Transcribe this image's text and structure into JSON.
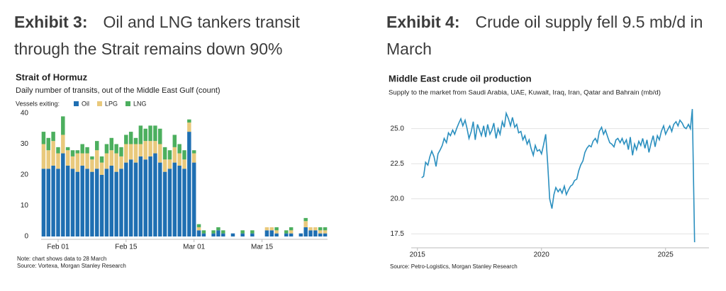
{
  "chart_data": [
    {
      "type": "bar",
      "stacked": true,
      "exhibit": "Exhibit 3:",
      "heading": "Oil and LNG tankers transit through the Strait remains down 90%",
      "title": "Strait of Hormuz",
      "subtitle": "Daily number of transits, out of the Middle East Gulf (count)",
      "legend_title": "Vessels exiting:",
      "note": "Note: chart shows data to 28 March",
      "source": "Source: Vortexa, Morgan Stanley Research",
      "categories": [
        null,
        null,
        null,
        "Feb 01",
        null,
        null,
        null,
        null,
        null,
        null,
        null,
        null,
        null,
        null,
        null,
        null,
        null,
        "Feb 15",
        null,
        null,
        null,
        null,
        null,
        null,
        null,
        null,
        null,
        null,
        null,
        null,
        null,
        "Mar 01",
        null,
        null,
        null,
        null,
        null,
        null,
        null,
        null,
        null,
        null,
        null,
        null,
        null,
        "Mar 15",
        null,
        null,
        null,
        null,
        null,
        null,
        null,
        null,
        null,
        null,
        null,
        null,
        null
      ],
      "series": [
        {
          "name": "Oil",
          "color": "#1f6fb2",
          "values": [
            22,
            22,
            23,
            22,
            27,
            23,
            22,
            21,
            23,
            22,
            21,
            22,
            20,
            22,
            23,
            21,
            22,
            24,
            25,
            24,
            26,
            25,
            26,
            27,
            24,
            21,
            22,
            24,
            23,
            22,
            34,
            24,
            2,
            1,
            0,
            1,
            2,
            1,
            0,
            1,
            0,
            1,
            0,
            1,
            0,
            0,
            2,
            2,
            1,
            0,
            1,
            1,
            0,
            1,
            3,
            2,
            2,
            1,
            1
          ]
        },
        {
          "name": "LPG",
          "color": "#e9c97c",
          "values": [
            8,
            6,
            8,
            5,
            6,
            5,
            4,
            6,
            4,
            5,
            4,
            6,
            4,
            5,
            5,
            6,
            4,
            6,
            5,
            6,
            4,
            6,
            5,
            4,
            6,
            4,
            3,
            5,
            4,
            3,
            3,
            3,
            1,
            0,
            0,
            0,
            0,
            0,
            0,
            0,
            0,
            0,
            0,
            0,
            0,
            0,
            1,
            1,
            1,
            0,
            0,
            1,
            0,
            0,
            2,
            1,
            1,
            1,
            1
          ]
        },
        {
          "name": "LNG",
          "color": "#4caf5e",
          "values": [
            4,
            4,
            3,
            2,
            6,
            1,
            2,
            1,
            3,
            2,
            1,
            3,
            2,
            3,
            4,
            3,
            3,
            3,
            4,
            2,
            6,
            4,
            5,
            5,
            5,
            4,
            3,
            4,
            3,
            3,
            1,
            1,
            1,
            1,
            0,
            1,
            1,
            1,
            0,
            0,
            0,
            1,
            0,
            1,
            0,
            0,
            0,
            0,
            1,
            0,
            1,
            1,
            0,
            0,
            1,
            0,
            0,
            1,
            1
          ]
        }
      ],
      "ylim": [
        0,
        40
      ],
      "yticks": [
        0,
        10,
        20,
        30,
        40
      ],
      "grid": false
    },
    {
      "type": "line",
      "exhibit": "Exhibit 4:",
      "heading": "Crude oil supply fell 9.5 mb/d in March",
      "title": "Middle East crude oil production",
      "subtitle": "Supply to the market from Saudi Arabia, UAE, Kuwait, Iraq, Iran, Qatar and Bahrain (mb/d)",
      "source": "Source: Petro-Logistics, Morgan Stanley Research",
      "color": "#2a8fbf",
      "x": [
        2015.17,
        2015.25,
        2015.33,
        2015.42,
        2015.5,
        2015.58,
        2015.67,
        2015.75,
        2015.83,
        2015.92,
        2016,
        2016.08,
        2016.17,
        2016.25,
        2016.33,
        2016.42,
        2016.5,
        2016.58,
        2016.67,
        2016.75,
        2016.83,
        2016.92,
        2017,
        2017.08,
        2017.17,
        2017.25,
        2017.33,
        2017.42,
        2017.5,
        2017.58,
        2017.67,
        2017.75,
        2017.83,
        2017.92,
        2018,
        2018.08,
        2018.17,
        2018.25,
        2018.33,
        2018.42,
        2018.5,
        2018.58,
        2018.67,
        2018.75,
        2018.83,
        2018.92,
        2019,
        2019.08,
        2019.17,
        2019.25,
        2019.33,
        2019.42,
        2019.5,
        2019.58,
        2019.67,
        2019.75,
        2019.83,
        2019.92,
        2020,
        2020.08,
        2020.17,
        2020.25,
        2020.33,
        2020.42,
        2020.5,
        2020.58,
        2020.67,
        2020.75,
        2020.83,
        2020.92,
        2021,
        2021.08,
        2021.17,
        2021.25,
        2021.33,
        2021.42,
        2021.5,
        2021.58,
        2021.67,
        2021.75,
        2021.83,
        2021.92,
        2022,
        2022.08,
        2022.17,
        2022.25,
        2022.33,
        2022.42,
        2022.5,
        2022.58,
        2022.67,
        2022.75,
        2022.83,
        2022.92,
        2023,
        2023.08,
        2023.17,
        2023.25,
        2023.33,
        2023.42,
        2023.5,
        2023.58,
        2023.67,
        2023.75,
        2023.83,
        2023.92,
        2024,
        2024.08,
        2024.17,
        2024.25,
        2024.33,
        2024.42,
        2024.5,
        2024.58,
        2024.67,
        2024.75,
        2024.83,
        2024.92,
        2025,
        2025.08,
        2025.17,
        2025.25,
        2025.33,
        2025.42,
        2025.5,
        2025.58,
        2025.67,
        2025.75,
        2025.83,
        2025.92,
        2026,
        2026.08,
        2026.17
      ],
      "values": [
        21.5,
        21.6,
        22.6,
        22.4,
        23.0,
        23.4,
        23.0,
        22.3,
        23.2,
        23.5,
        23.8,
        24.3,
        24.0,
        24.7,
        24.5,
        24.9,
        24.6,
        25.0,
        25.4,
        25.7,
        25.2,
        25.6,
        25.0,
        24.3,
        24.8,
        25.5,
        24.2,
        25.3,
        24.9,
        24.5,
        25.2,
        24.4,
        25.3,
        24.6,
        24.9,
        25.4,
        24.3,
        25.0,
        24.6,
        25.5,
        25.1,
        26.1,
        25.7,
        25.2,
        25.8,
        25.1,
        25.3,
        24.7,
        24.8,
        24.2,
        24.5,
        23.9,
        24.2,
        23.6,
        23.1,
        23.8,
        23.4,
        23.5,
        23.2,
        23.8,
        24.6,
        22.5,
        20.0,
        19.3,
        20.3,
        20.8,
        20.5,
        20.7,
        20.4,
        20.9,
        20.3,
        20.6,
        20.9,
        21.0,
        21.3,
        21.4,
        22.0,
        22.4,
        22.7,
        23.3,
        23.6,
        23.8,
        23.7,
        24.1,
        24.3,
        24.0,
        24.8,
        25.1,
        24.6,
        24.9,
        24.4,
        24.0,
        23.9,
        23.7,
        24.2,
        24.3,
        24.0,
        24.3,
        23.9,
        24.2,
        23.5,
        24.4,
        23.1,
        23.9,
        23.5,
        24.1,
        23.8,
        24.3,
        23.6,
        24.2,
        23.3,
        24.0,
        24.5,
        23.7,
        24.5,
        24.2,
        24.8,
        25.2,
        24.6,
        24.9,
        25.2,
        24.8,
        25.3,
        25.5,
        25.2,
        25.6,
        25.4,
        25.1,
        25.0,
        25.3,
        25.0,
        26.4,
        16.9
      ],
      "xlim": [
        2014.75,
        2026.75
      ],
      "xticks": [
        2015,
        2020,
        2025
      ],
      "ylim": [
        16.5,
        26.6
      ],
      "yticks": [
        {
          "value": 17.5,
          "label": "17.5"
        },
        {
          "value": 20,
          "label": "20.0"
        },
        {
          "value": 22.5,
          "label": "22.5"
        },
        {
          "value": 25,
          "label": "25.0"
        }
      ],
      "grid": true
    }
  ]
}
